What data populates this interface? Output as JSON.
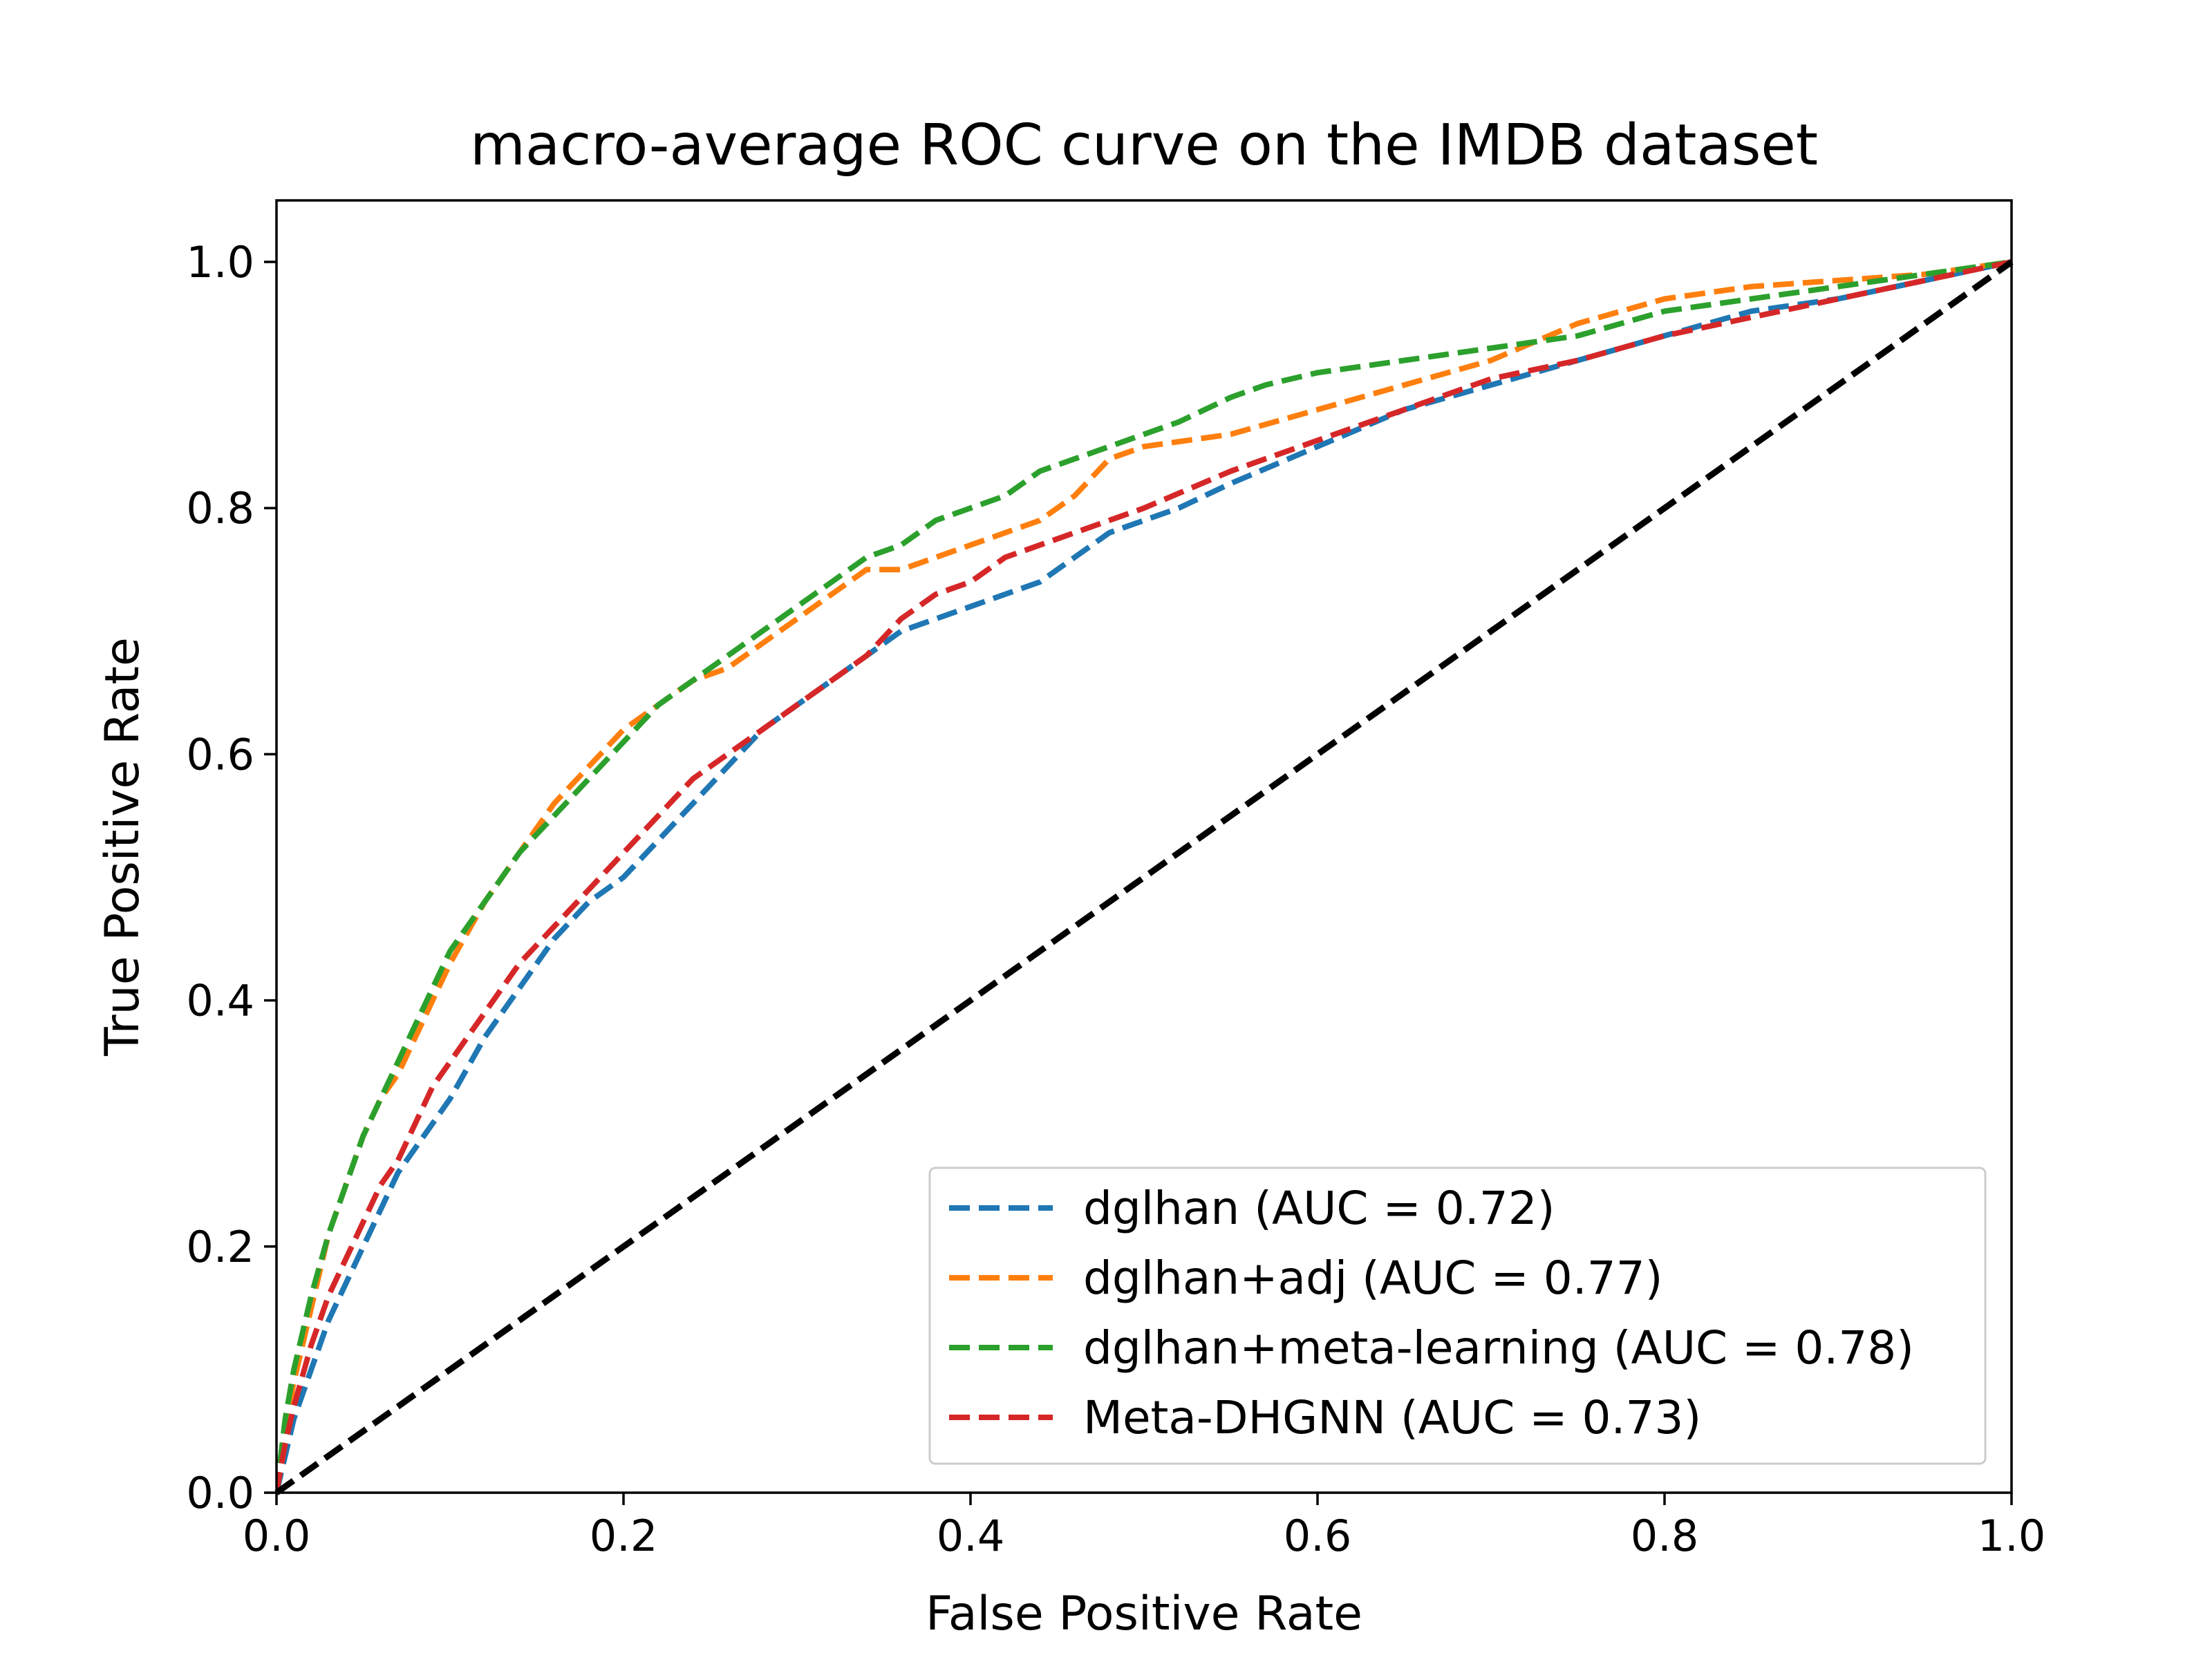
{
  "chart_data": {
    "type": "line",
    "title": "macro-average ROC curve on the IMDB dataset",
    "xlabel": "False Positive Rate",
    "ylabel": "True Positive Rate",
    "xlim": [
      0.0,
      1.0
    ],
    "ylim": [
      0.0,
      1.05
    ],
    "xticks": [
      "0.0",
      "0.2",
      "0.4",
      "0.6",
      "0.8",
      "1.0"
    ],
    "yticks": [
      "0.0",
      "0.2",
      "0.4",
      "0.6",
      "0.8",
      "1.0"
    ],
    "grid": false,
    "legend_position": "lower-right",
    "series": [
      {
        "name": "dglhan (AUC = 0.72)",
        "color": "#1f77b4",
        "x": [
          0.0,
          0.005,
          0.01,
          0.02,
          0.03,
          0.04,
          0.05,
          0.06,
          0.07,
          0.08,
          0.09,
          0.1,
          0.12,
          0.14,
          0.15,
          0.16,
          0.18,
          0.2,
          0.22,
          0.24,
          0.26,
          0.28,
          0.3,
          0.32,
          0.34,
          0.36,
          0.38,
          0.4,
          0.42,
          0.44,
          0.46,
          0.48,
          0.5,
          0.52,
          0.55,
          0.6,
          0.65,
          0.7,
          0.75,
          0.8,
          0.85,
          0.9,
          0.95,
          1.0
        ],
        "y": [
          0.0,
          0.03,
          0.06,
          0.1,
          0.14,
          0.17,
          0.2,
          0.23,
          0.26,
          0.28,
          0.3,
          0.32,
          0.37,
          0.41,
          0.43,
          0.45,
          0.48,
          0.5,
          0.53,
          0.56,
          0.59,
          0.62,
          0.64,
          0.66,
          0.68,
          0.7,
          0.71,
          0.72,
          0.73,
          0.74,
          0.76,
          0.78,
          0.79,
          0.8,
          0.82,
          0.85,
          0.88,
          0.9,
          0.92,
          0.94,
          0.96,
          0.97,
          0.985,
          1.0
        ]
      },
      {
        "name": "dglhan+adj (AUC = 0.77)",
        "color": "#ff7f0e",
        "x": [
          0.0,
          0.005,
          0.01,
          0.02,
          0.03,
          0.04,
          0.05,
          0.06,
          0.07,
          0.08,
          0.09,
          0.1,
          0.12,
          0.14,
          0.16,
          0.18,
          0.2,
          0.22,
          0.24,
          0.26,
          0.28,
          0.3,
          0.32,
          0.34,
          0.36,
          0.38,
          0.4,
          0.42,
          0.44,
          0.46,
          0.48,
          0.5,
          0.55,
          0.6,
          0.65,
          0.7,
          0.75,
          0.8,
          0.85,
          0.9,
          0.95,
          1.0
        ],
        "y": [
          0.0,
          0.05,
          0.09,
          0.15,
          0.21,
          0.25,
          0.29,
          0.32,
          0.34,
          0.37,
          0.4,
          0.43,
          0.48,
          0.52,
          0.56,
          0.59,
          0.62,
          0.64,
          0.66,
          0.67,
          0.69,
          0.71,
          0.73,
          0.75,
          0.75,
          0.76,
          0.77,
          0.78,
          0.79,
          0.81,
          0.84,
          0.85,
          0.86,
          0.88,
          0.9,
          0.92,
          0.95,
          0.97,
          0.98,
          0.985,
          0.99,
          1.0
        ]
      },
      {
        "name": "dglhan+meta-learning (AUC = 0.78)",
        "color": "#2ca02c",
        "x": [
          0.0,
          0.005,
          0.01,
          0.02,
          0.03,
          0.04,
          0.05,
          0.06,
          0.07,
          0.08,
          0.09,
          0.1,
          0.12,
          0.14,
          0.16,
          0.18,
          0.2,
          0.22,
          0.24,
          0.26,
          0.28,
          0.3,
          0.32,
          0.34,
          0.36,
          0.38,
          0.4,
          0.42,
          0.44,
          0.46,
          0.48,
          0.5,
          0.52,
          0.55,
          0.57,
          0.6,
          0.65,
          0.7,
          0.75,
          0.8,
          0.85,
          0.9,
          0.95,
          1.0
        ],
        "y": [
          0.0,
          0.06,
          0.1,
          0.16,
          0.21,
          0.25,
          0.29,
          0.32,
          0.35,
          0.38,
          0.41,
          0.44,
          0.48,
          0.52,
          0.55,
          0.58,
          0.61,
          0.64,
          0.66,
          0.68,
          0.7,
          0.72,
          0.74,
          0.76,
          0.77,
          0.79,
          0.8,
          0.81,
          0.83,
          0.84,
          0.85,
          0.86,
          0.87,
          0.89,
          0.9,
          0.91,
          0.92,
          0.93,
          0.94,
          0.96,
          0.97,
          0.98,
          0.99,
          1.0
        ]
      },
      {
        "name": "Meta-DHGNN (AUC = 0.73)",
        "color": "#d62728",
        "x": [
          0.0,
          0.005,
          0.01,
          0.02,
          0.03,
          0.04,
          0.05,
          0.06,
          0.07,
          0.08,
          0.09,
          0.1,
          0.12,
          0.14,
          0.16,
          0.18,
          0.2,
          0.22,
          0.24,
          0.26,
          0.28,
          0.3,
          0.32,
          0.34,
          0.36,
          0.38,
          0.4,
          0.42,
          0.44,
          0.46,
          0.48,
          0.5,
          0.55,
          0.6,
          0.65,
          0.7,
          0.75,
          0.8,
          0.85,
          0.9,
          0.95,
          1.0
        ],
        "y": [
          0.0,
          0.04,
          0.07,
          0.12,
          0.16,
          0.19,
          0.22,
          0.25,
          0.27,
          0.3,
          0.33,
          0.35,
          0.39,
          0.43,
          0.46,
          0.49,
          0.52,
          0.55,
          0.58,
          0.6,
          0.62,
          0.64,
          0.66,
          0.68,
          0.71,
          0.73,
          0.74,
          0.76,
          0.77,
          0.78,
          0.79,
          0.8,
          0.83,
          0.855,
          0.88,
          0.905,
          0.92,
          0.94,
          0.955,
          0.97,
          0.985,
          1.0
        ]
      }
    ],
    "reference_line": {
      "x": [
        0.0,
        1.0
      ],
      "y": [
        0.0,
        1.0
      ],
      "color": "#000000"
    }
  }
}
